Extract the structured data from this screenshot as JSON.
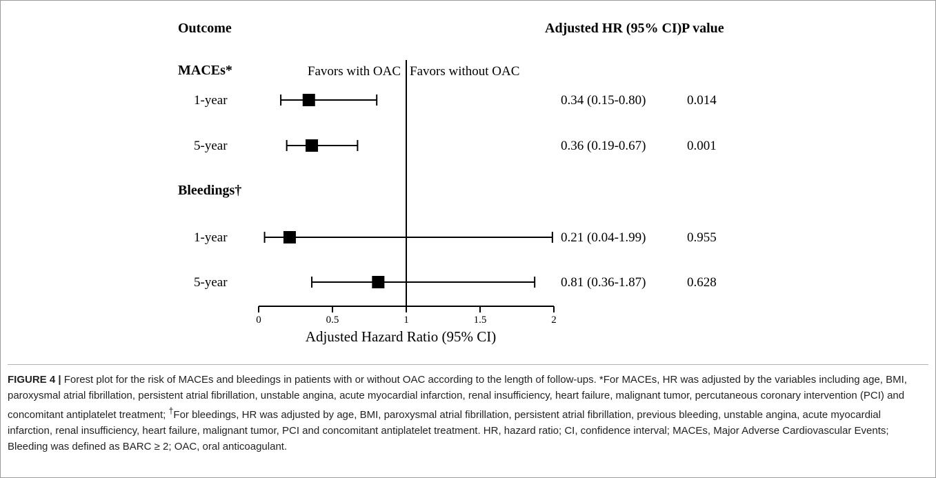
{
  "chart_data": {
    "type": "forest",
    "headers": {
      "outcome": "Outcome",
      "hr": "Adjusted HR (95% CI)",
      "p": "P value"
    },
    "favors_left": "Favors with OAC",
    "favors_right": "Favors without OAC",
    "xlabel": "Adjusted Hazard Ratio (95% CI)",
    "xlim": [
      0,
      2
    ],
    "xticks": [
      0,
      0.5,
      1,
      1.5,
      2
    ],
    "xtick_labels": [
      "0",
      "0.5",
      "1",
      "1.5",
      "2"
    ],
    "reference_line": 1,
    "groups": [
      {
        "name": "MACEs*",
        "rows": [
          {
            "label": "1-year",
            "hr": 0.34,
            "lo": 0.15,
            "hi": 0.8,
            "hr_text": "0.34 (0.15-0.80)",
            "p": "0.014"
          },
          {
            "label": "5-year",
            "hr": 0.36,
            "lo": 0.19,
            "hi": 0.67,
            "hr_text": "0.36 (0.19-0.67)",
            "p": "0.001"
          }
        ]
      },
      {
        "name": "Bleedings†",
        "rows": [
          {
            "label": "1-year",
            "hr": 0.21,
            "lo": 0.04,
            "hi": 1.99,
            "hr_text": "0.21 (0.04-1.99)",
            "p": "0.955"
          },
          {
            "label": "5-year",
            "hr": 0.81,
            "lo": 0.36,
            "hi": 1.87,
            "hr_text": "0.81 (0.36-1.87)",
            "p": "0.628"
          }
        ]
      }
    ]
  },
  "caption": {
    "figure_label": "FIGURE 4 |",
    "text_part1": " Forest plot for the risk of MACEs and bleedings in patients with or without OAC according to the length of follow-ups. *For MACEs, HR was adjusted by the variables including age, BMI, paroxysmal atrial fibrillation, persistent atrial fibrillation, unstable angina, acute myocardial infarction, renal insufficiency, heart failure, malignant tumor, percutaneous coronary intervention (PCI) and concomitant antiplatelet treatment; ",
    "dagger": "†",
    "text_part2": "For bleedings, HR was adjusted by age, BMI, paroxysmal atrial fibrillation, persistent atrial fibrillation, previous bleeding, unstable angina, acute myocardial infarction, renal insufficiency, heart failure, malignant tumor, PCI and concomitant antiplatelet treatment. HR, hazard ratio; CI, confidence interval; MACEs, Major Adverse Cardiovascular Events; Bleeding was defined as BARC ≥ 2; OAC, oral anticoagulant."
  }
}
